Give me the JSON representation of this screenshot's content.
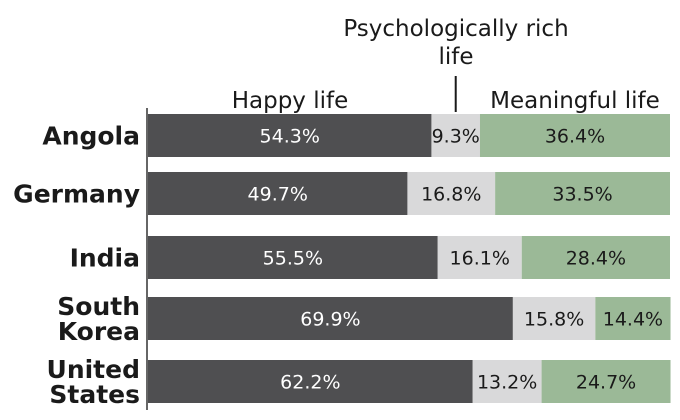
{
  "chart_data": {
    "type": "bar",
    "orientation": "horizontal",
    "stacked": true,
    "normalized": true,
    "title": "",
    "xlabel": "",
    "ylabel": "",
    "xlim": [
      0,
      100
    ],
    "categories": [
      {
        "lines": [
          "Angola"
        ]
      },
      {
        "lines": [
          "Germany"
        ]
      },
      {
        "lines": [
          "India"
        ]
      },
      {
        "lines": [
          "South",
          "Korea"
        ]
      },
      {
        "lines": [
          "United",
          "States"
        ]
      }
    ],
    "series": [
      {
        "name": "Happy life",
        "color": "#4f4f51",
        "label_color": "#ffffff",
        "values": [
          54.3,
          49.7,
          55.5,
          69.9,
          62.2
        ],
        "labels": [
          "54.3%",
          "49.7%",
          "55.5%",
          "69.9%",
          "62.2%"
        ]
      },
      {
        "name_lines": [
          "Psychologically rich",
          "life"
        ],
        "color": "#d9d9da",
        "label_color": "#1a1a1a",
        "values": [
          9.3,
          16.8,
          16.1,
          15.8,
          13.2
        ],
        "labels": [
          "9.3%",
          "16.8%",
          "16.1%",
          "15.8%",
          "13.2%"
        ]
      },
      {
        "name": "Meaningful life",
        "color": "#9bb997",
        "label_color": "#1a1a1a",
        "values": [
          36.4,
          33.5,
          28.4,
          14.4,
          24.7
        ],
        "labels": [
          "36.4%",
          "33.5%",
          "28.4%",
          "14.4%",
          "24.7%"
        ]
      }
    ],
    "legend": "above-bars",
    "grid": false
  }
}
